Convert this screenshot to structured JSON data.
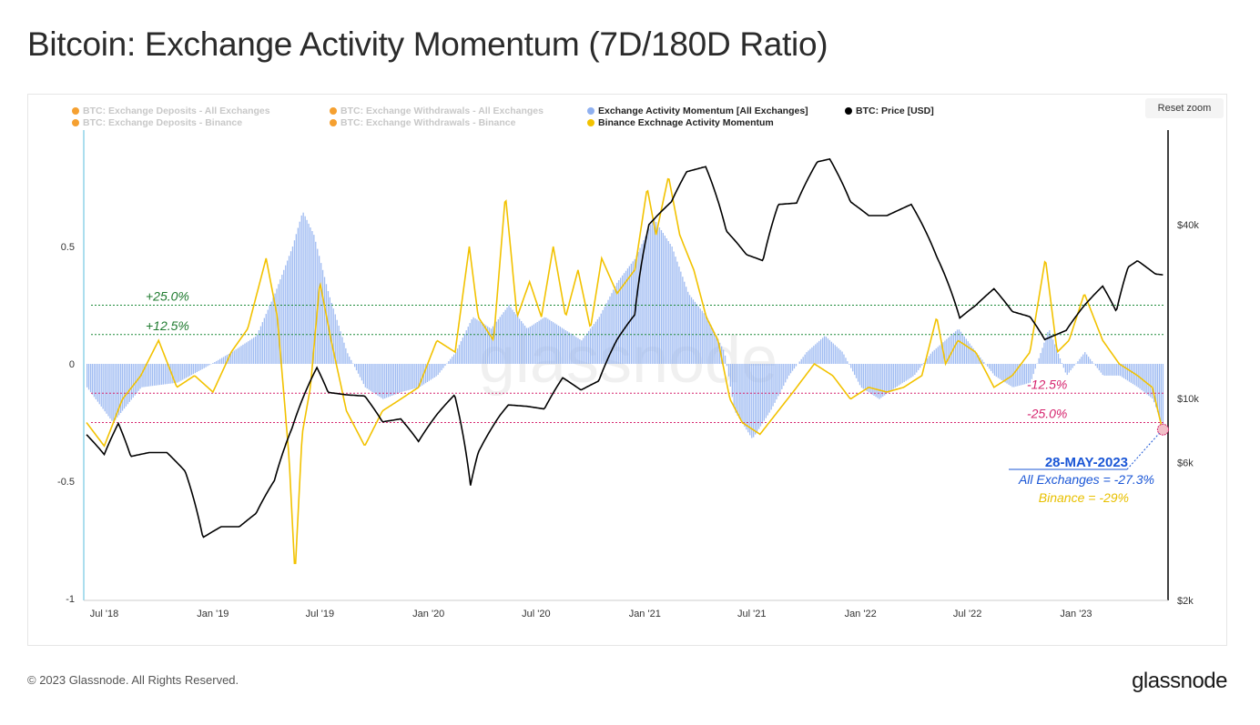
{
  "page_title": "Bitcoin: Exchange Activity Momentum (7D/180D Ratio)",
  "reset_zoom_label": "Reset zoom",
  "footer": {
    "copyright": "© 2023 Glassnode. All Rights Reserved.",
    "brand": "glassnode"
  },
  "watermark": "glassnode",
  "colors": {
    "momentum_all": "#8fb0f0",
    "binance": "#f2c200",
    "price": "#000000",
    "dim_legend": "#f5a030",
    "green_line": "#1e8a3a",
    "pink_line": "#d6246e",
    "annotation_blue": "#1a56d6"
  },
  "legend": [
    {
      "label": "BTC: Exchange Deposits - All Exchanges",
      "color": "#f5a030",
      "active": false
    },
    {
      "label": "BTC: Exchange Deposits - Binance",
      "color": "#f5a030",
      "active": false
    },
    {
      "label": "BTC: Exchange Withdrawals - All Exchanges",
      "color": "#f5a030",
      "active": false
    },
    {
      "label": "BTC: Exchange Withdrawals - Binance",
      "color": "#f5a030",
      "active": false
    },
    {
      "label": "Exchange Activity Momentum [All Exchanges]",
      "color": "#8fb0f0",
      "active": true
    },
    {
      "label": "Binance Exchnage Activity Momentum",
      "color": "#f2c200",
      "active": true
    },
    {
      "label": "BTC: Price [USD]",
      "color": "#000000",
      "active": true
    }
  ],
  "chart_data": {
    "type": "line",
    "title": "Bitcoin: Exchange Activity Momentum (7D/180D Ratio)",
    "x_range": [
      "2018-06-01",
      "2023-06-01"
    ],
    "x_ticks": [
      "Jul '18",
      "Jan '19",
      "Jul '19",
      "Jan '20",
      "Jul '20",
      "Jan '21",
      "Jul '21",
      "Jan '22",
      "Jul '22",
      "Jan '23"
    ],
    "y_left": {
      "ticks": [
        "0.5",
        "0",
        "-0.5",
        "-1"
      ],
      "range": [
        -1,
        0.75
      ]
    },
    "y_right": {
      "scale": "log",
      "ticks": [
        "$40k",
        "$10k",
        "$6k",
        "$2k"
      ],
      "range": [
        2000,
        65000
      ]
    },
    "reference_lines": [
      {
        "value": 0.25,
        "label": "+25.0%",
        "color": "#1e8a3a"
      },
      {
        "value": 0.125,
        "label": "+12.5%",
        "color": "#1e8a3a"
      },
      {
        "value": -0.125,
        "label": "-12.5%",
        "color": "#d6246e"
      },
      {
        "value": -0.25,
        "label": "-25.0%",
        "color": "#d6246e"
      }
    ],
    "series": [
      {
        "name": "Exchange Activity Momentum [All Exchanges]",
        "type": "bar",
        "axis": "left",
        "color": "#8fb0f0",
        "points": [
          [
            "2018-06-01",
            -0.1
          ],
          [
            "2018-07-15",
            -0.25
          ],
          [
            "2018-09-01",
            -0.1
          ],
          [
            "2018-11-01",
            -0.08
          ],
          [
            "2018-12-15",
            -0.02
          ],
          [
            "2019-02-01",
            0.05
          ],
          [
            "2019-03-15",
            0.12
          ],
          [
            "2019-04-15",
            0.3
          ],
          [
            "2019-05-15",
            0.5
          ],
          [
            "2019-06-01",
            0.65
          ],
          [
            "2019-06-20",
            0.55
          ],
          [
            "2019-07-15",
            0.3
          ],
          [
            "2019-08-15",
            0.05
          ],
          [
            "2019-09-15",
            -0.1
          ],
          [
            "2019-10-15",
            -0.15
          ],
          [
            "2019-11-15",
            -0.12
          ],
          [
            "2019-12-15",
            -0.1
          ],
          [
            "2020-01-15",
            -0.05
          ],
          [
            "2020-02-15",
            0.05
          ],
          [
            "2020-03-15",
            0.2
          ],
          [
            "2020-04-15",
            0.15
          ],
          [
            "2020-05-15",
            0.25
          ],
          [
            "2020-06-15",
            0.15
          ],
          [
            "2020-07-15",
            0.2
          ],
          [
            "2020-08-15",
            0.15
          ],
          [
            "2020-09-15",
            0.1
          ],
          [
            "2020-10-15",
            0.2
          ],
          [
            "2020-11-15",
            0.35
          ],
          [
            "2020-12-15",
            0.45
          ],
          [
            "2021-01-15",
            0.62
          ],
          [
            "2021-02-15",
            0.5
          ],
          [
            "2021-03-15",
            0.3
          ],
          [
            "2021-04-15",
            0.2
          ],
          [
            "2021-05-15",
            0.05
          ],
          [
            "2021-06-01",
            -0.2
          ],
          [
            "2021-07-01",
            -0.32
          ],
          [
            "2021-08-01",
            -0.2
          ],
          [
            "2021-09-01",
            -0.05
          ],
          [
            "2021-10-01",
            0.05
          ],
          [
            "2021-11-01",
            0.12
          ],
          [
            "2021-12-01",
            0.05
          ],
          [
            "2022-01-01",
            -0.1
          ],
          [
            "2022-02-01",
            -0.15
          ],
          [
            "2022-03-01",
            -0.1
          ],
          [
            "2022-04-01",
            -0.05
          ],
          [
            "2022-05-01",
            0.05
          ],
          [
            "2022-06-15",
            0.15
          ],
          [
            "2022-07-15",
            0.05
          ],
          [
            "2022-08-15",
            -0.05
          ],
          [
            "2022-09-15",
            -0.1
          ],
          [
            "2022-10-15",
            -0.08
          ],
          [
            "2022-11-15",
            0.15
          ],
          [
            "2022-12-15",
            -0.05
          ],
          [
            "2023-01-15",
            0.05
          ],
          [
            "2023-02-15",
            -0.05
          ],
          [
            "2023-03-15",
            -0.05
          ],
          [
            "2023-04-15",
            -0.1
          ],
          [
            "2023-05-10",
            -0.15
          ],
          [
            "2023-05-28",
            -0.273
          ]
        ]
      },
      {
        "name": "Binance Exchnage Activity Momentum",
        "type": "line",
        "axis": "left",
        "color": "#f2c200",
        "points": [
          [
            "2018-06-01",
            -0.25
          ],
          [
            "2018-07-01",
            -0.35
          ],
          [
            "2018-08-01",
            -0.15
          ],
          [
            "2018-09-01",
            -0.05
          ],
          [
            "2018-10-01",
            0.1
          ],
          [
            "2018-11-01",
            -0.1
          ],
          [
            "2018-12-01",
            -0.05
          ],
          [
            "2019-01-01",
            -0.12
          ],
          [
            "2019-02-01",
            0.05
          ],
          [
            "2019-03-01",
            0.15
          ],
          [
            "2019-04-01",
            0.45
          ],
          [
            "2019-04-20",
            0.2
          ],
          [
            "2019-05-10",
            -0.4
          ],
          [
            "2019-05-20",
            -0.9
          ],
          [
            "2019-06-01",
            -0.3
          ],
          [
            "2019-06-15",
            -0.1
          ],
          [
            "2019-07-01",
            0.35
          ],
          [
            "2019-07-20",
            0.1
          ],
          [
            "2019-08-15",
            -0.2
          ],
          [
            "2019-09-15",
            -0.35
          ],
          [
            "2019-10-15",
            -0.2
          ],
          [
            "2019-11-15",
            -0.15
          ],
          [
            "2019-12-15",
            -0.1
          ],
          [
            "2020-01-15",
            0.1
          ],
          [
            "2020-02-15",
            0.05
          ],
          [
            "2020-03-10",
            0.5
          ],
          [
            "2020-03-25",
            0.2
          ],
          [
            "2020-04-20",
            0.1
          ],
          [
            "2020-05-10",
            0.72
          ],
          [
            "2020-05-30",
            0.2
          ],
          [
            "2020-06-20",
            0.35
          ],
          [
            "2020-07-10",
            0.2
          ],
          [
            "2020-07-30",
            0.5
          ],
          [
            "2020-08-20",
            0.2
          ],
          [
            "2020-09-10",
            0.4
          ],
          [
            "2020-10-01",
            0.15
          ],
          [
            "2020-10-20",
            0.45
          ],
          [
            "2020-11-15",
            0.3
          ],
          [
            "2020-12-15",
            0.4
          ],
          [
            "2021-01-05",
            0.75
          ],
          [
            "2021-01-20",
            0.55
          ],
          [
            "2021-02-10",
            0.8
          ],
          [
            "2021-03-01",
            0.55
          ],
          [
            "2021-03-25",
            0.4
          ],
          [
            "2021-04-15",
            0.2
          ],
          [
            "2021-05-05",
            0.1
          ],
          [
            "2021-05-25",
            -0.15
          ],
          [
            "2021-06-15",
            -0.25
          ],
          [
            "2021-07-15",
            -0.3
          ],
          [
            "2021-08-15",
            -0.2
          ],
          [
            "2021-09-15",
            -0.1
          ],
          [
            "2021-10-15",
            0.0
          ],
          [
            "2021-11-15",
            -0.05
          ],
          [
            "2021-12-15",
            -0.15
          ],
          [
            "2022-01-15",
            -0.1
          ],
          [
            "2022-02-15",
            -0.12
          ],
          [
            "2022-03-15",
            -0.1
          ],
          [
            "2022-04-15",
            -0.05
          ],
          [
            "2022-05-10",
            0.2
          ],
          [
            "2022-05-25",
            0.0
          ],
          [
            "2022-06-15",
            0.1
          ],
          [
            "2022-07-15",
            0.05
          ],
          [
            "2022-08-15",
            -0.1
          ],
          [
            "2022-09-15",
            -0.05
          ],
          [
            "2022-10-15",
            0.05
          ],
          [
            "2022-11-10",
            0.45
          ],
          [
            "2022-11-30",
            0.05
          ],
          [
            "2022-12-20",
            0.1
          ],
          [
            "2023-01-15",
            0.3
          ],
          [
            "2023-02-15",
            0.1
          ],
          [
            "2023-03-15",
            0.0
          ],
          [
            "2023-04-15",
            -0.05
          ],
          [
            "2023-05-10",
            -0.1
          ],
          [
            "2023-05-28",
            -0.29
          ]
        ]
      },
      {
        "name": "BTC: Price [USD]",
        "type": "line",
        "axis": "right",
        "color": "#000000",
        "points": [
          [
            "2018-06-01",
            7500
          ],
          [
            "2018-07-01",
            6400
          ],
          [
            "2018-07-25",
            8200
          ],
          [
            "2018-08-15",
            6300
          ],
          [
            "2018-09-15",
            6500
          ],
          [
            "2018-10-15",
            6500
          ],
          [
            "2018-11-15",
            5600
          ],
          [
            "2018-12-15",
            3300
          ],
          [
            "2019-01-15",
            3600
          ],
          [
            "2019-02-15",
            3600
          ],
          [
            "2019-03-15",
            4000
          ],
          [
            "2019-04-15",
            5200
          ],
          [
            "2019-05-15",
            7900
          ],
          [
            "2019-06-26",
            12800
          ],
          [
            "2019-07-15",
            10500
          ],
          [
            "2019-08-15",
            10300
          ],
          [
            "2019-09-15",
            10200
          ],
          [
            "2019-10-15",
            8300
          ],
          [
            "2019-11-15",
            8500
          ],
          [
            "2019-12-15",
            7100
          ],
          [
            "2020-01-15",
            8800
          ],
          [
            "2020-02-14",
            10300
          ],
          [
            "2020-03-12",
            5000
          ],
          [
            "2020-03-25",
            6500
          ],
          [
            "2020-04-30",
            8700
          ],
          [
            "2020-05-15",
            9500
          ],
          [
            "2020-06-15",
            9400
          ],
          [
            "2020-07-15",
            9200
          ],
          [
            "2020-08-15",
            11800
          ],
          [
            "2020-09-15",
            10700
          ],
          [
            "2020-10-15",
            11500
          ],
          [
            "2020-11-15",
            16000
          ],
          [
            "2020-12-15",
            19500
          ],
          [
            "2021-01-08",
            40000
          ],
          [
            "2021-02-15",
            48000
          ],
          [
            "2021-03-13",
            61000
          ],
          [
            "2021-04-14",
            63500
          ],
          [
            "2021-05-19",
            38000
          ],
          [
            "2021-06-22",
            31500
          ],
          [
            "2021-07-20",
            30000
          ],
          [
            "2021-08-15",
            47000
          ],
          [
            "2021-09-15",
            47500
          ],
          [
            "2021-10-20",
            66000
          ],
          [
            "2021-11-10",
            67500
          ],
          [
            "2021-12-15",
            48000
          ],
          [
            "2022-01-15",
            43000
          ],
          [
            "2022-02-15",
            43000
          ],
          [
            "2022-03-28",
            47000
          ],
          [
            "2022-05-10",
            31000
          ],
          [
            "2022-06-18",
            19000
          ],
          [
            "2022-07-15",
            21000
          ],
          [
            "2022-08-15",
            24000
          ],
          [
            "2022-09-15",
            20000
          ],
          [
            "2022-10-15",
            19200
          ],
          [
            "2022-11-09",
            16000
          ],
          [
            "2022-12-15",
            17200
          ],
          [
            "2023-01-15",
            21000
          ],
          [
            "2023-02-15",
            24500
          ],
          [
            "2023-03-10",
            20000
          ],
          [
            "2023-03-30",
            28500
          ],
          [
            "2023-04-15",
            30000
          ],
          [
            "2023-05-15",
            27000
          ],
          [
            "2023-05-28",
            26800
          ]
        ]
      }
    ],
    "annotation": {
      "date": "28-MAY-2023",
      "all_exchanges": "All Exchanges = -27.3%",
      "binance": "Binance = -29%"
    }
  }
}
